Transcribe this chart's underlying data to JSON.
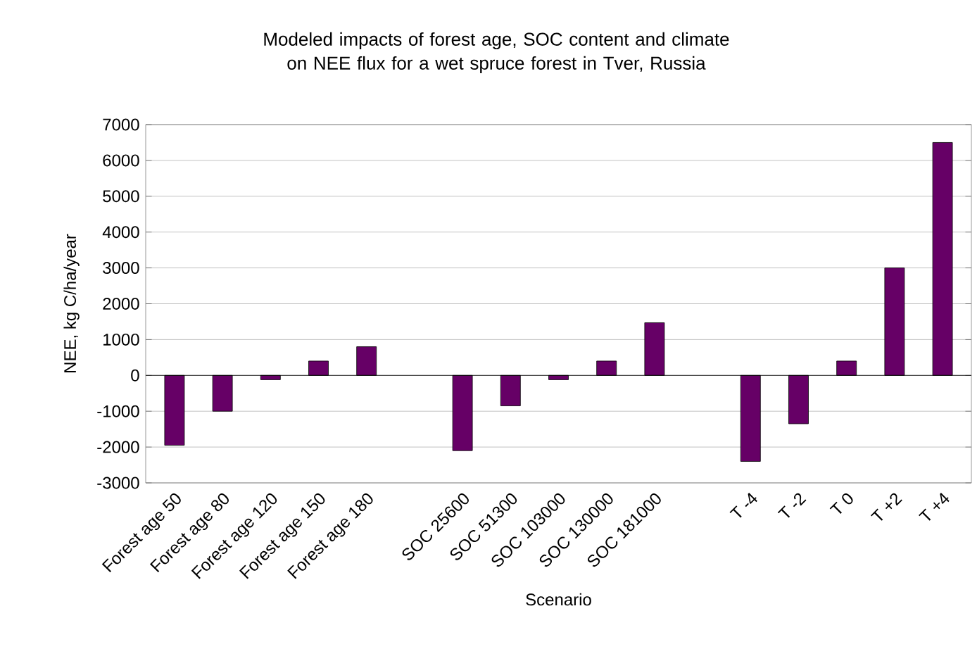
{
  "chart_data": {
    "type": "bar",
    "title": "Modeled impacts of forest age, SOC content and climate on NEE flux for a wet spruce forest in Tver, Russia",
    "xlabel": "Scenario",
    "ylabel": "NEE, kg C/ha/year",
    "categories": [
      "Forest age 50",
      "Forest age 80",
      "Forest age 120",
      "Forest age 150",
      "Forest age 180",
      null,
      "SOC 25600",
      "SOC 51300",
      "SOC 103000",
      "SOC 130000",
      "SOC 181000",
      null,
      "T -4",
      "T -2",
      "T 0",
      "T +2",
      "T +4"
    ],
    "values": [
      -1950,
      -1000,
      -120,
      400,
      800,
      null,
      -2100,
      -850,
      -120,
      400,
      1470,
      null,
      -2400,
      -1350,
      400,
      3000,
      6500
    ],
    "color": "#660066",
    "ylim": [
      -3000,
      7000
    ],
    "yticks": [
      -3000,
      -2000,
      -1000,
      0,
      1000,
      2000,
      3000,
      4000,
      5000,
      6000,
      7000
    ],
    "grid": "y"
  }
}
